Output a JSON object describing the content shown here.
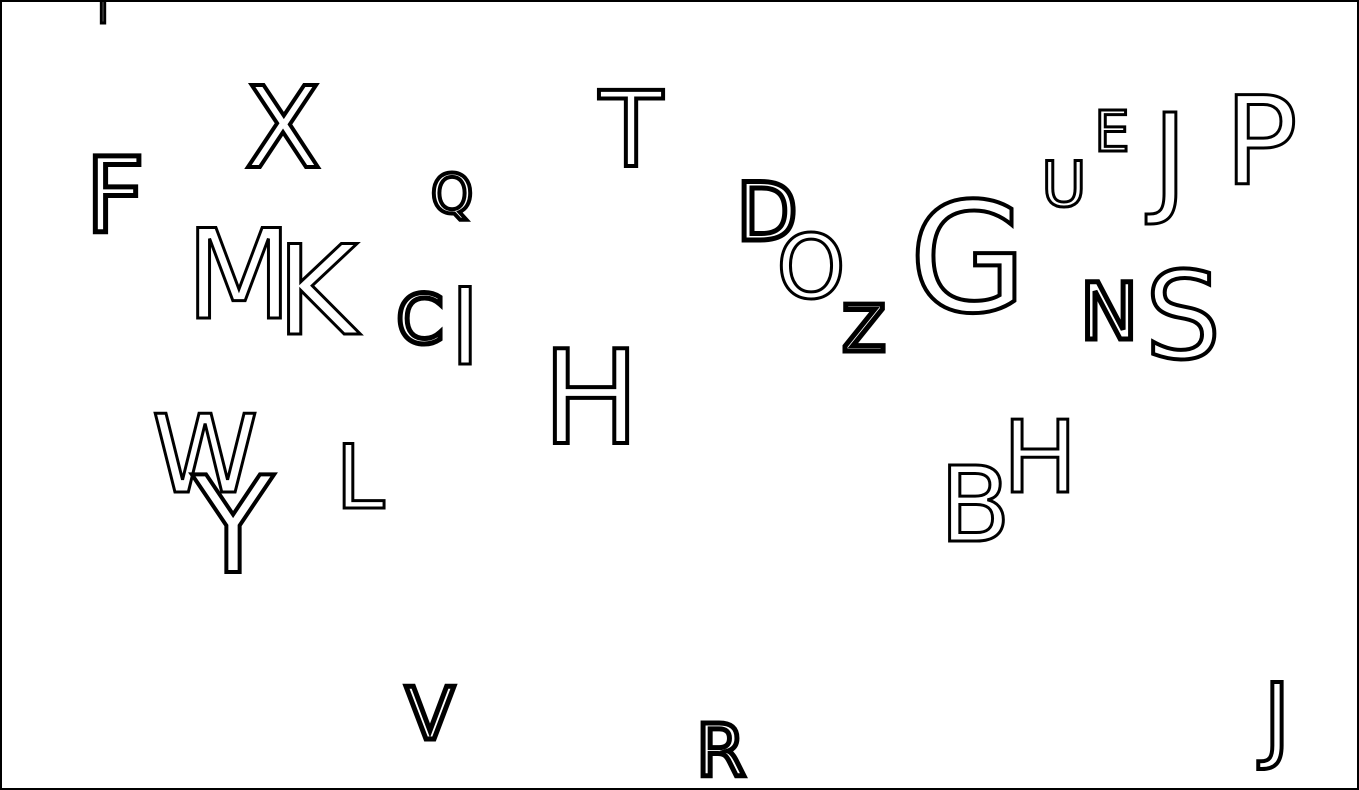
{
  "stroke_color": "#000000",
  "background_color": "#ffffff",
  "letters": [
    "I",
    "X",
    "T",
    "F",
    "Q",
    "D",
    "E",
    "J",
    "P",
    "U",
    "M",
    "K",
    "G",
    "O",
    "C",
    "I",
    "N",
    "S",
    "Z",
    "H",
    "W",
    "L",
    "H",
    "B",
    "Y",
    "V",
    "R",
    "J"
  ]
}
